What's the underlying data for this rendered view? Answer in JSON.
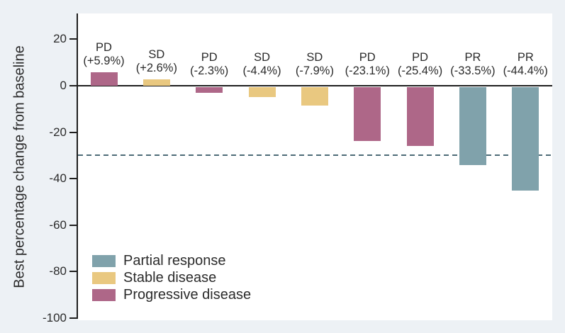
{
  "chart_data": {
    "type": "bar",
    "title": "",
    "ylabel": "Best percentage change from baseline",
    "xlabel": "",
    "ylim": [
      -100,
      31
    ],
    "grid": false,
    "legend_position": "lower-left-inside",
    "yticks": [
      {
        "label": "20",
        "value": 20
      },
      {
        "label": "0",
        "value": 0
      },
      {
        "label": "-20",
        "value": -20
      },
      {
        "label": "-40",
        "value": -40
      },
      {
        "label": "-60",
        "value": -60
      },
      {
        "label": "-80",
        "value": -80
      },
      {
        "label": "-100",
        "value": -100
      }
    ],
    "reference_line": {
      "value": -30,
      "style": "dashed"
    },
    "bars": [
      {
        "code": "PD",
        "pct_label": "(+5.9%)",
        "value": 5.9,
        "group": "progressive_disease"
      },
      {
        "code": "SD",
        "pct_label": "(+2.6%)",
        "value": 2.6,
        "group": "stable_disease"
      },
      {
        "code": "PD",
        "pct_label": "(-2.3%)",
        "value": -2.3,
        "group": "progressive_disease"
      },
      {
        "code": "SD",
        "pct_label": "(-4.4%)",
        "value": -4.4,
        "group": "stable_disease"
      },
      {
        "code": "SD",
        "pct_label": "(-7.9%)",
        "value": -7.9,
        "group": "stable_disease"
      },
      {
        "code": "PD",
        "pct_label": "(-23.1%)",
        "value": -23.1,
        "group": "progressive_disease"
      },
      {
        "code": "PD",
        "pct_label": "(-25.4%)",
        "value": -25.4,
        "group": "progressive_disease"
      },
      {
        "code": "PR",
        "pct_label": "(-33.5%)",
        "value": -33.5,
        "group": "partial_response"
      },
      {
        "code": "PR",
        "pct_label": "(-44.4%)",
        "value": -44.4,
        "group": "partial_response"
      }
    ],
    "legend": [
      {
        "label": "Partial response",
        "group": "partial_response"
      },
      {
        "label": "Stable disease",
        "group": "stable_disease"
      },
      {
        "label": "Progressive disease",
        "group": "progressive_disease"
      }
    ],
    "colors": {
      "partial_response": "#80a2ab",
      "stable_disease": "#e9c880",
      "progressive_disease": "#ae6788",
      "reference_line": "#4d6b77",
      "axis": "#1f1f1f",
      "text": "#2b2b2b",
      "background": "#edf1f5",
      "plot_background": "#ffffff"
    }
  }
}
